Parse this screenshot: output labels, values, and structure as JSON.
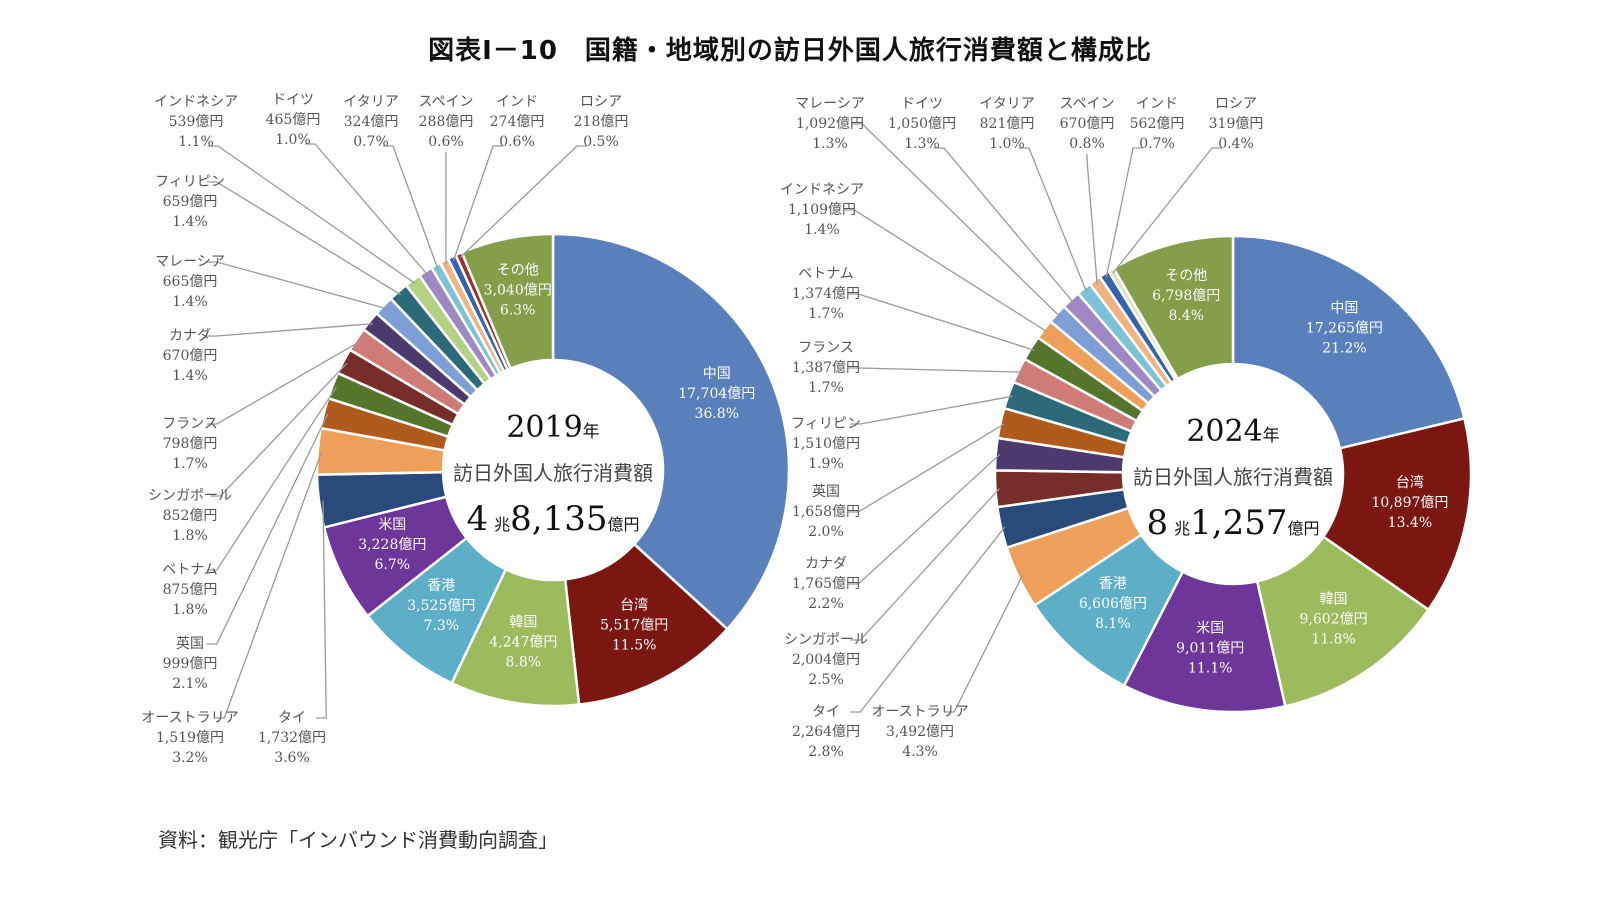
{
  "title": "図表Ⅰ－10　国籍・地域別の訪日外国人旅行消費額と構成比",
  "source": "資料：観光庁「インバウンド消費動向調査」",
  "colors": {
    "中国": "#5a80bb",
    "台湾": "#7b1611",
    "韓国": "#9cbb5c",
    "香港": "#5daec7",
    "米国": "#6e3699",
    "タイ": "#2a4a7c",
    "オーストラリア": "#eea05a",
    "英国": "#b05b1c",
    "ベトナム": "#55752c",
    "シンガポール": "#772e2a",
    "フランス": "#cf7b78",
    "カナダ": "#4c3a6f",
    "マレーシア": "#7d9fd6",
    "フィリピン": "#2c6a79",
    "インドネシア_2019": "#b5d183",
    "インドネシア_2024": "#eea05a",
    "ドイツ": "#9f88c4",
    "イタリア": "#7cc3d8",
    "スペイン": "#f1b382",
    "インド": "#3464ad",
    "ロシア_2019": "#9b3030",
    "ロシア_2024": "#d7e3c2",
    "その他": "#849e4a"
  },
  "chart_data": [
    {
      "type": "pie",
      "variant": "donut",
      "title": "2019年",
      "caption": "訪日外国人旅行消費額",
      "total_label": {
        "major": "4",
        "major_unit": "兆",
        "minor": "8,135",
        "minor_unit": "億円"
      },
      "unit": "億円",
      "order": "clockwise from 12 o'clock",
      "slices": [
        {
          "name": "中国",
          "value": 17704,
          "value_label": "17,704億円",
          "pct": "36.8%",
          "label_pos": "inside"
        },
        {
          "name": "台湾",
          "value": 5517,
          "value_label": "5,517億円",
          "pct": "11.5%",
          "label_pos": "inside"
        },
        {
          "name": "韓国",
          "value": 4247,
          "value_label": "4,247億円",
          "pct": "8.8%",
          "label_pos": "inside"
        },
        {
          "name": "香港",
          "value": 3525,
          "value_label": "3,525億円",
          "pct": "7.3%",
          "label_pos": "inside"
        },
        {
          "name": "米国",
          "value": 3228,
          "value_label": "3,228億円",
          "pct": "6.7%",
          "label_pos": "inside"
        },
        {
          "name": "タイ",
          "value": 1732,
          "value_label": "1,732億円",
          "pct": "3.6%",
          "label_pos": "outside"
        },
        {
          "name": "オーストラリア",
          "value": 1519,
          "value_label": "1,519億円",
          "pct": "3.2%",
          "label_pos": "outside"
        },
        {
          "name": "英国",
          "value": 999,
          "value_label": "999億円",
          "pct": "2.1%",
          "label_pos": "outside"
        },
        {
          "name": "ベトナム",
          "value": 875,
          "value_label": "875億円",
          "pct": "1.8%",
          "label_pos": "outside"
        },
        {
          "name": "シンガポール",
          "value": 852,
          "value_label": "852億円",
          "pct": "1.8%",
          "label_pos": "outside"
        },
        {
          "name": "フランス",
          "value": 798,
          "value_label": "798億円",
          "pct": "1.7%",
          "label_pos": "outside"
        },
        {
          "name": "カナダ",
          "value": 670,
          "value_label": "670億円",
          "pct": "1.4%",
          "label_pos": "outside"
        },
        {
          "name": "マレーシア",
          "value": 665,
          "value_label": "665億円",
          "pct": "1.4%",
          "label_pos": "outside"
        },
        {
          "name": "フィリピン",
          "value": 659,
          "value_label": "659億円",
          "pct": "1.4%",
          "label_pos": "outside"
        },
        {
          "name": "インドネシア",
          "value": 539,
          "value_label": "539億円",
          "pct": "1.1%",
          "label_pos": "outside"
        },
        {
          "name": "ドイツ",
          "value": 465,
          "value_label": "465億円",
          "pct": "1.0%",
          "label_pos": "outside"
        },
        {
          "name": "イタリア",
          "value": 324,
          "value_label": "324億円",
          "pct": "0.7%",
          "label_pos": "outside"
        },
        {
          "name": "スペイン",
          "value": 288,
          "value_label": "288億円",
          "pct": "0.6%",
          "label_pos": "outside"
        },
        {
          "name": "インド",
          "value": 274,
          "value_label": "274億円",
          "pct": "0.6%",
          "label_pos": "outside"
        },
        {
          "name": "ロシア",
          "value": 218,
          "value_label": "218億円",
          "pct": "0.5%",
          "label_pos": "outside"
        },
        {
          "name": "その他",
          "value": 3040,
          "value_label": "3,040億円",
          "pct": "6.3%",
          "label_pos": "inside"
        }
      ]
    },
    {
      "type": "pie",
      "variant": "donut",
      "title": "2024年",
      "caption": "訪日外国人旅行消費額",
      "total_label": {
        "major": "8",
        "major_unit": "兆",
        "minor": "1,257",
        "minor_unit": "億円"
      },
      "unit": "億円",
      "order": "clockwise from 12 o'clock",
      "slices": [
        {
          "name": "中国",
          "value": 17265,
          "value_label": "17,265億円",
          "pct": "21.2%",
          "label_pos": "inside"
        },
        {
          "name": "台湾",
          "value": 10897,
          "value_label": "10,897億円",
          "pct": "13.4%",
          "label_pos": "inside"
        },
        {
          "name": "韓国",
          "value": 9602,
          "value_label": "9,602億円",
          "pct": "11.8%",
          "label_pos": "inside"
        },
        {
          "name": "米国",
          "value": 9011,
          "value_label": "9,011億円",
          "pct": "11.1%",
          "label_pos": "inside"
        },
        {
          "name": "香港",
          "value": 6606,
          "value_label": "6,606億円",
          "pct": "8.1%",
          "label_pos": "inside"
        },
        {
          "name": "オーストラリア",
          "value": 3492,
          "value_label": "3,492億円",
          "pct": "4.3%",
          "label_pos": "outside"
        },
        {
          "name": "タイ",
          "value": 2264,
          "value_label": "2,264億円",
          "pct": "2.8%",
          "label_pos": "outside"
        },
        {
          "name": "シンガポール",
          "value": 2004,
          "value_label": "2,004億円",
          "pct": "2.5%",
          "label_pos": "outside"
        },
        {
          "name": "カナダ",
          "value": 1765,
          "value_label": "1,765億円",
          "pct": "2.2%",
          "label_pos": "outside"
        },
        {
          "name": "英国",
          "value": 1658,
          "value_label": "1,658億円",
          "pct": "2.0%",
          "label_pos": "outside"
        },
        {
          "name": "フィリピン",
          "value": 1510,
          "value_label": "1,510億円",
          "pct": "1.9%",
          "label_pos": "outside"
        },
        {
          "name": "フランス",
          "value": 1387,
          "value_label": "1,387億円",
          "pct": "1.7%",
          "label_pos": "outside"
        },
        {
          "name": "ベトナム",
          "value": 1374,
          "value_label": "1,374億円",
          "pct": "1.7%",
          "label_pos": "outside"
        },
        {
          "name": "インドネシア",
          "value": 1109,
          "value_label": "1,109億円",
          "pct": "1.4%",
          "label_pos": "outside"
        },
        {
          "name": "マレーシア",
          "value": 1092,
          "value_label": "1,092億円",
          "pct": "1.3%",
          "label_pos": "outside"
        },
        {
          "name": "ドイツ",
          "value": 1050,
          "value_label": "1,050億円",
          "pct": "1.3%",
          "label_pos": "outside"
        },
        {
          "name": "イタリア",
          "value": 821,
          "value_label": "821億円",
          "pct": "1.0%",
          "label_pos": "outside"
        },
        {
          "name": "スペイン",
          "value": 670,
          "value_label": "670億円",
          "pct": "0.8%",
          "label_pos": "outside"
        },
        {
          "name": "インド",
          "value": 562,
          "value_label": "562億円",
          "pct": "0.7%",
          "label_pos": "outside"
        },
        {
          "name": "ロシア",
          "value": 319,
          "value_label": "319億円",
          "pct": "0.4%",
          "label_pos": "outside"
        },
        {
          "name": "その他",
          "value": 6798,
          "value_label": "6,798億円",
          "pct": "8.4%",
          "label_pos": "inside"
        }
      ]
    }
  ]
}
